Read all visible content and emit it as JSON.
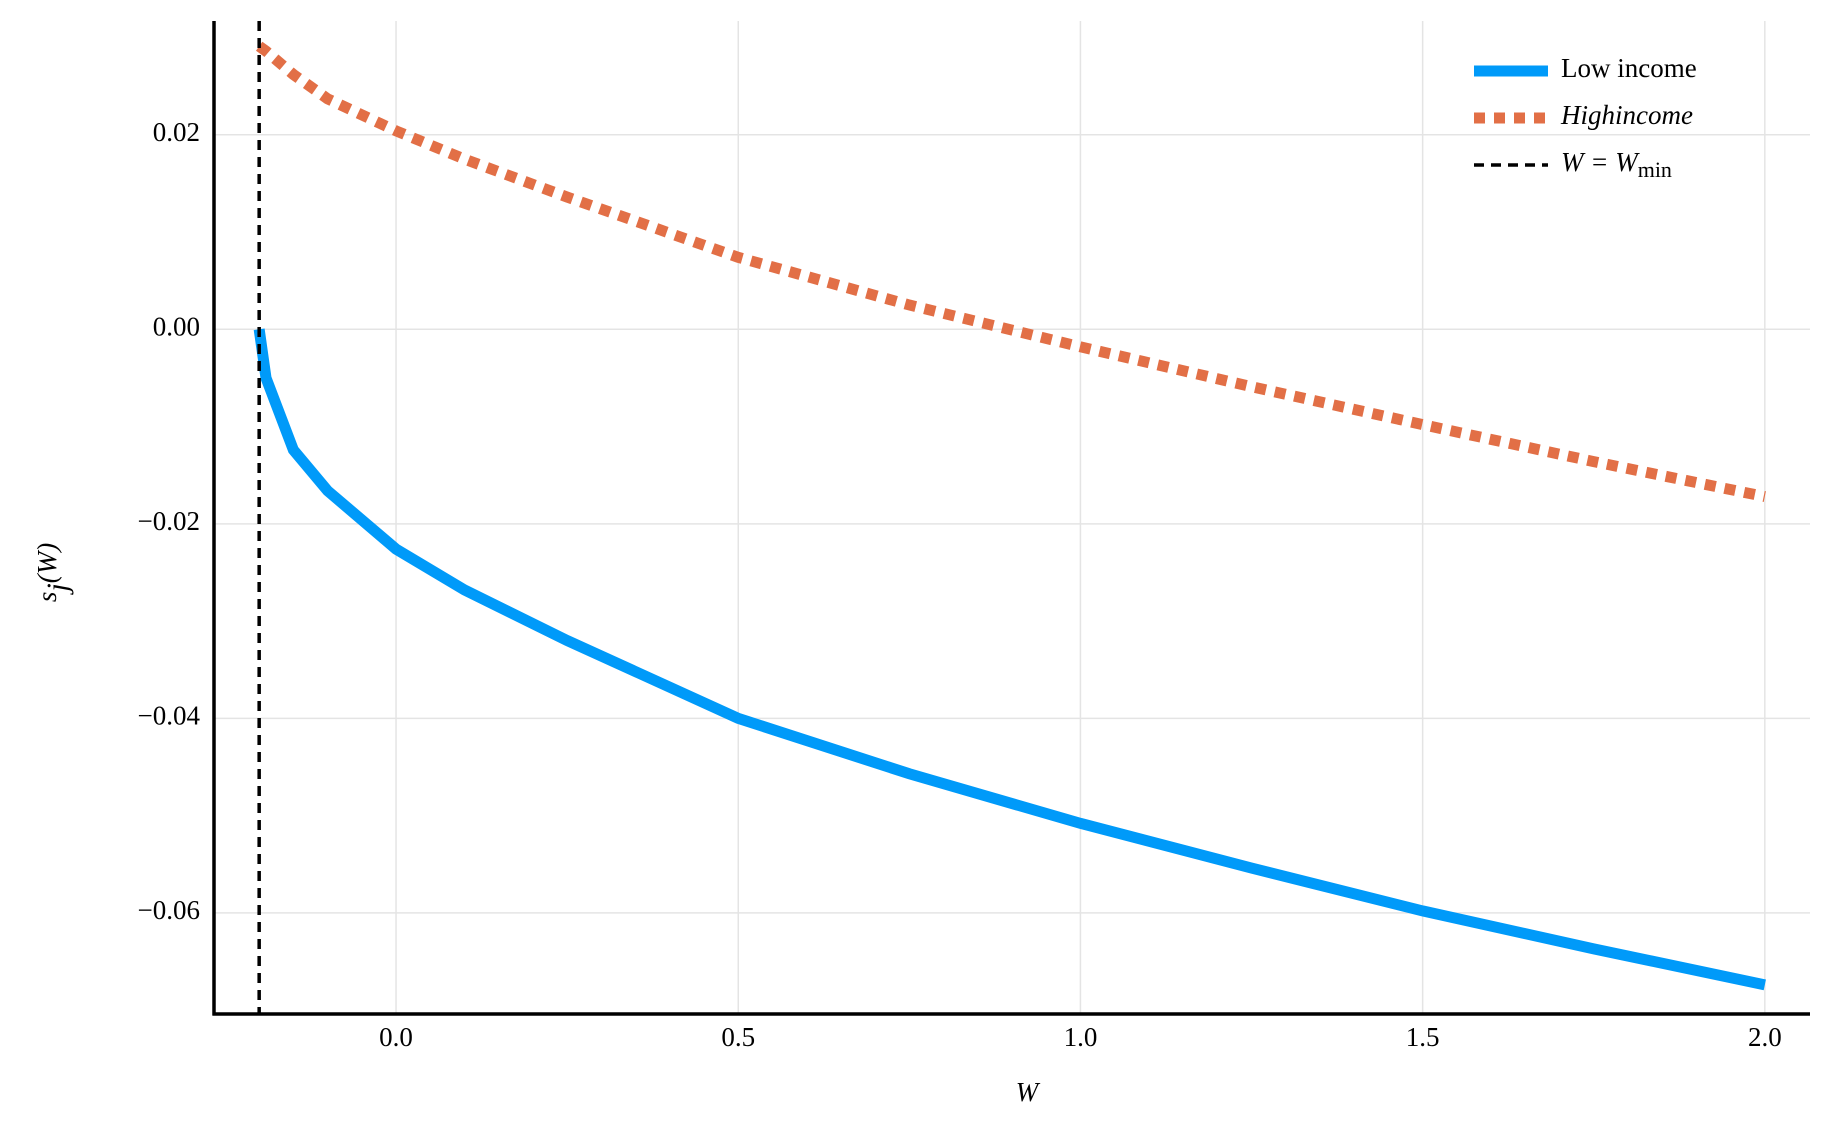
{
  "chart_data": {
    "type": "line",
    "xlabel": "W",
    "ylabel": "s",
    "ylabel_sub": "j",
    "ylabel_rest": "(W)",
    "x": [
      -0.2,
      -0.19,
      -0.15,
      -0.1,
      0,
      0.1,
      0.25,
      0.5,
      0.75,
      1.0,
      1.25,
      1.5,
      1.75,
      2.0
    ],
    "series": [
      {
        "name": "Low income",
        "color": "#009af9",
        "style": "solid",
        "values": [
          0,
          -0.005,
          -0.0124,
          -0.0166,
          -0.0226,
          -0.0268,
          -0.032,
          -0.04,
          -0.0457,
          -0.0508,
          -0.0554,
          -0.0598,
          -0.0637,
          -0.0674
        ]
      },
      {
        "name": "Highincome",
        "color": "#e26f46",
        "style": "dot",
        "values": [
          0.0291,
          0.0286,
          0.0262,
          0.0237,
          0.0204,
          0.0175,
          0.0136,
          0.0074,
          0.0025,
          -0.0018,
          -0.0059,
          -0.0098,
          -0.0136,
          -0.0172
        ]
      }
    ],
    "vline": {
      "name": "W = W",
      "name_sub": "min",
      "value": -0.2,
      "color": "#000000"
    },
    "xlim": [
      -0.266,
      2.066
    ],
    "ylim": [
      -0.0704,
      0.0317
    ],
    "xticks": [
      {
        "value": 0,
        "label": "0.0"
      },
      0.5,
      {
        "value": 1,
        "label": "1.0"
      },
      1.5,
      {
        "value": 2,
        "label": "2.0"
      }
    ],
    "yticks": [
      {
        "value": -0.06,
        "label": "−0.06"
      },
      {
        "value": -0.04,
        "label": "−0.04"
      },
      {
        "value": -0.02,
        "label": "−0.02"
      },
      {
        "value": 0,
        "label": "0.00"
      },
      0.02
    ],
    "grid": true,
    "legend": "top-right"
  }
}
